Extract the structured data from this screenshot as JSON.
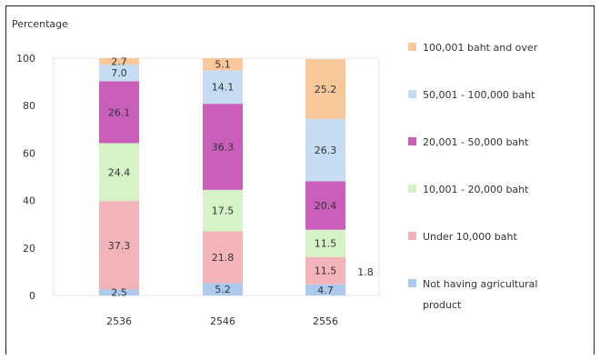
{
  "chart_data": {
    "type": "bar",
    "stacked": true,
    "ylabel": "Percentage",
    "ylim": [
      0,
      100
    ],
    "yticks": [
      0,
      20,
      40,
      60,
      80,
      100
    ],
    "categories": [
      "2536",
      "2546",
      "2556"
    ],
    "series": [
      {
        "name": "Not having agricultural product",
        "color": "#aec9ee",
        "values": [
          2.5,
          5.2,
          4.7
        ]
      },
      {
        "name": "Under 10,000 baht",
        "color": "#f3b4b9",
        "values": [
          37.3,
          21.8,
          11.5
        ]
      },
      {
        "name": "10,001 - 20,000 baht",
        "color": "#d6f3c7",
        "values": [
          24.4,
          17.5,
          11.5
        ]
      },
      {
        "name": "20,001 - 50,000 baht",
        "color": "#c95fbb",
        "values": [
          26.1,
          36.3,
          20.4
        ]
      },
      {
        "name": "50,001 - 100,000 baht",
        "color": "#c5dcf2",
        "values": [
          7.0,
          14.1,
          26.3
        ]
      },
      {
        "name": "100,001 baht and over",
        "color": "#f8c79a",
        "values": [
          2.7,
          5.1,
          25.2
        ]
      }
    ],
    "outside_labels": [
      {
        "category": "2556",
        "text": "1.8"
      }
    ],
    "legend": "right"
  }
}
